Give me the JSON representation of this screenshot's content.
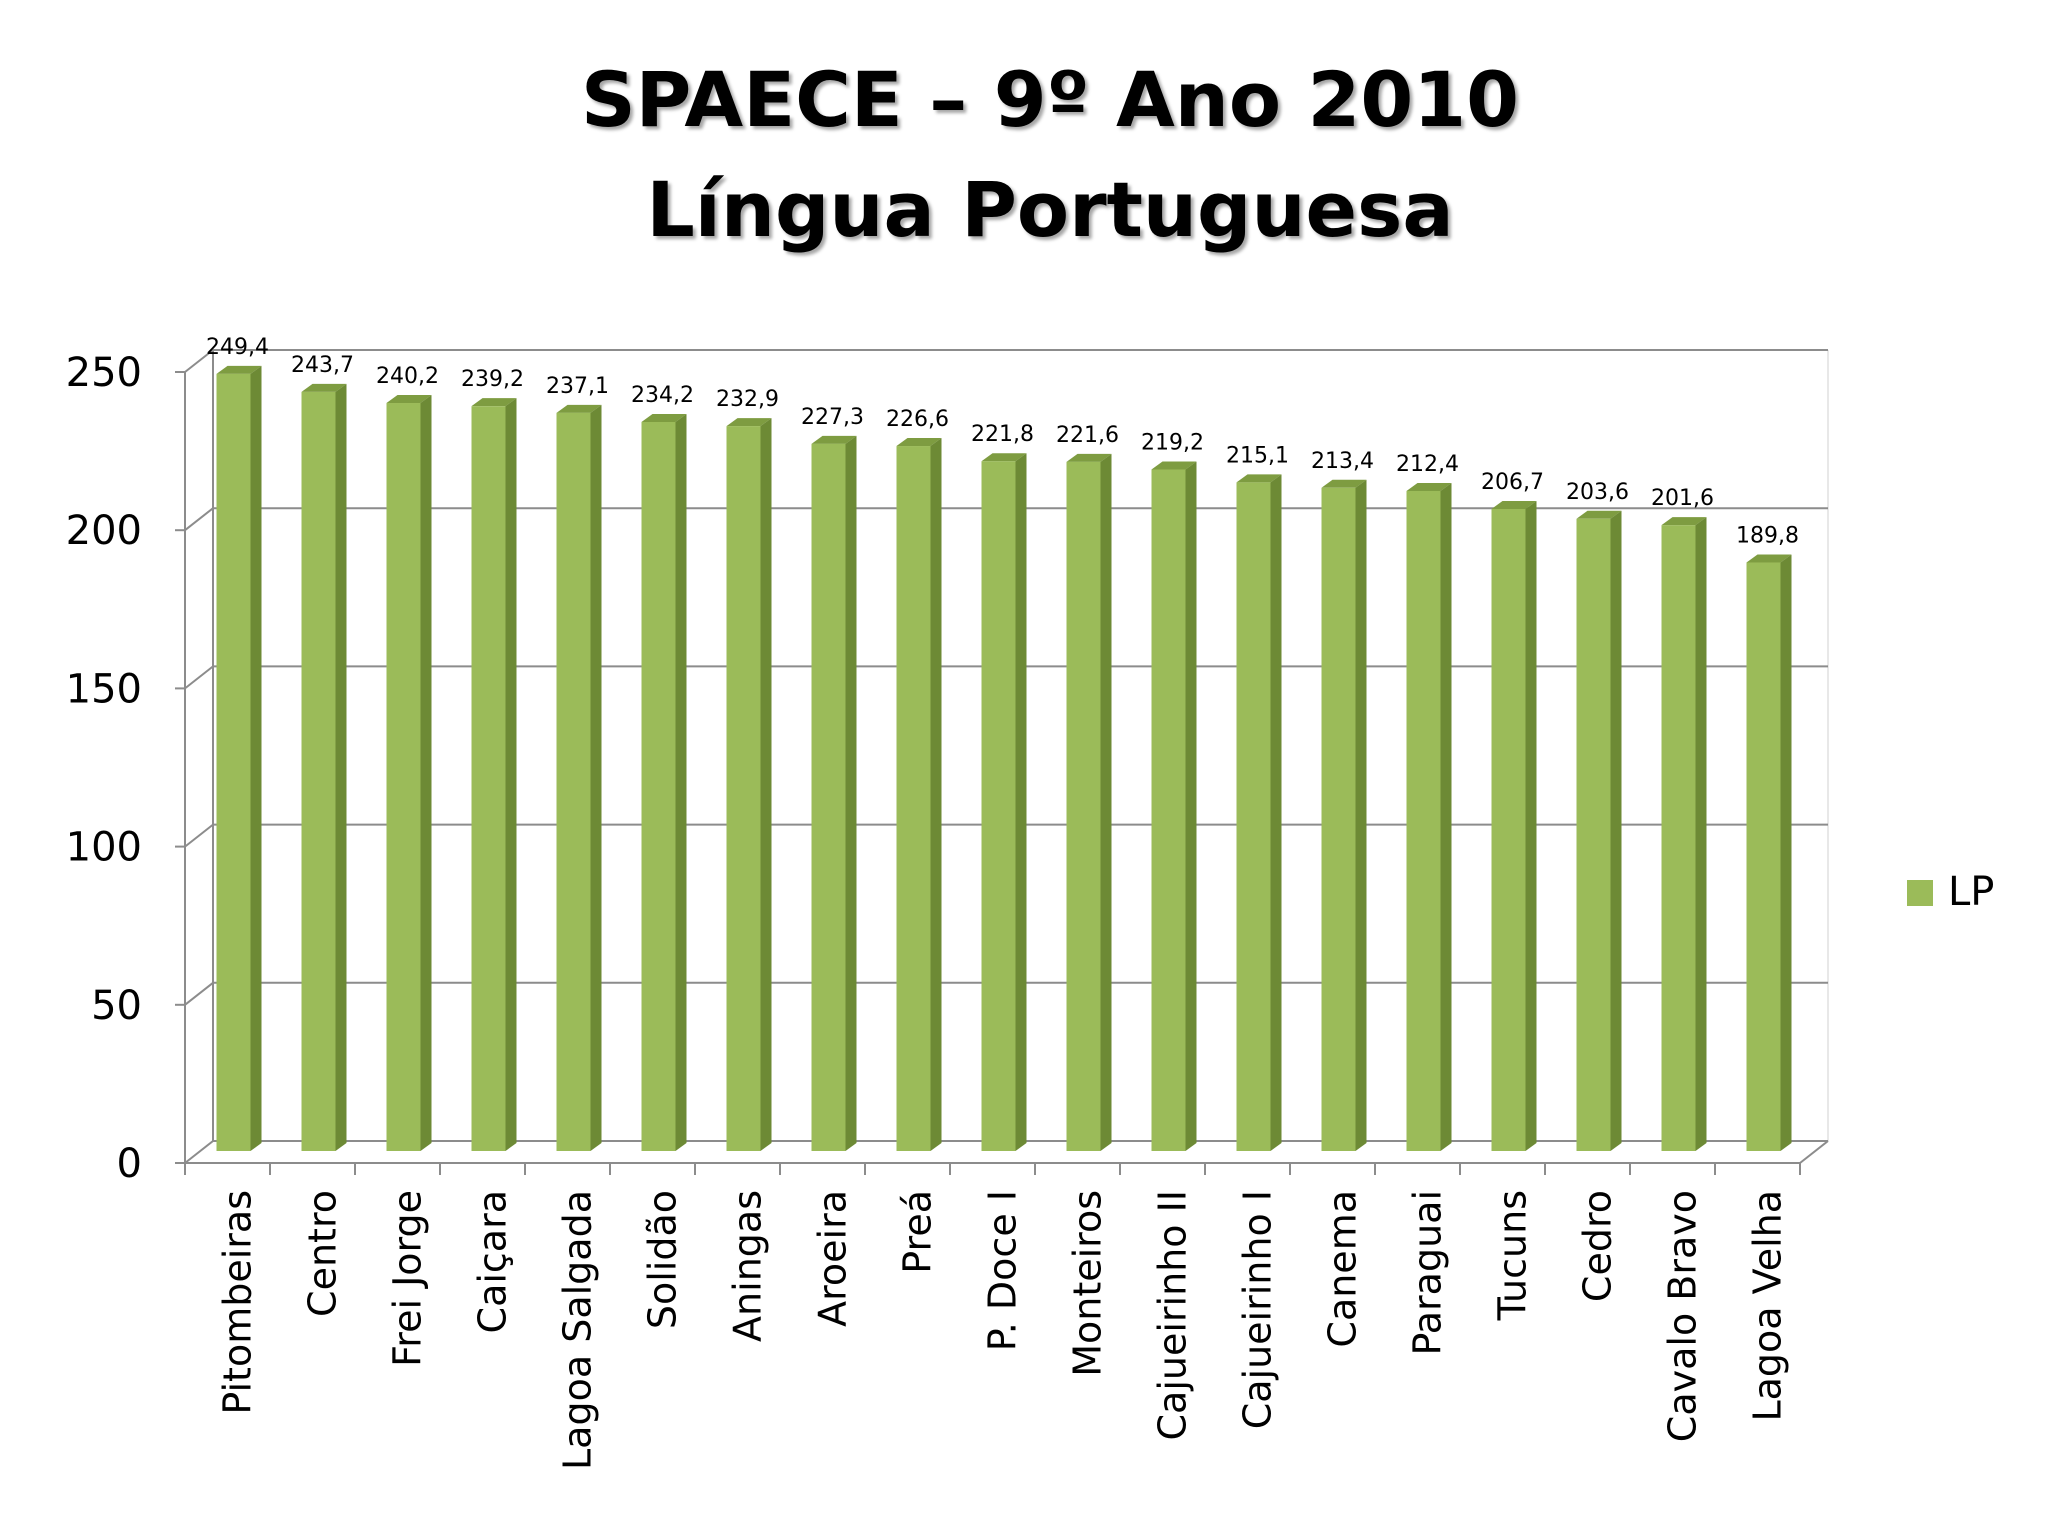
{
  "slide": {
    "title_line1": "SPAECE – 9º Ano 2010",
    "title_line2": "Língua Portuguesa"
  },
  "colors": {
    "bar_front": "#9BBB59",
    "bar_side": "#6D8A35",
    "bar_top": "#7E9C41",
    "grid": "#8C8C8C"
  },
  "chart_data": {
    "type": "bar",
    "title": "SPAECE – 9º Ano 2010 Língua Portuguesa",
    "xlabel": "",
    "ylabel": "",
    "ylim": [
      0,
      250
    ],
    "yticks": [
      0,
      50,
      100,
      150,
      200,
      250
    ],
    "grid": true,
    "legend": "right",
    "categories": [
      "Pitombeiras",
      "Centro",
      "Frei Jorge",
      "Caiçara",
      "Lagoa Salgada",
      "Solidão",
      "Aningas",
      "Aroeira",
      "Preá",
      "P. Doce I",
      "Monteiros",
      "Cajueirinho II",
      "Cajueirinho I",
      "Canema",
      "Paraguai",
      "Tucuns",
      "Cedro",
      "Cavalo Bravo",
      "Lagoa Velha"
    ],
    "series": [
      {
        "name": "LP",
        "values": [
          249.4,
          243.7,
          240.2,
          239.2,
          237.1,
          234.2,
          232.9,
          227.3,
          226.6,
          221.8,
          221.6,
          219.2,
          215.1,
          213.4,
          212.4,
          206.7,
          203.6,
          201.6,
          189.8
        ],
        "labels": [
          "249,4",
          "243,7",
          "240,2",
          "239,2",
          "237,1",
          "234,2",
          "232,9",
          "227,3",
          "226,6",
          "221,8",
          "221,6",
          "219,2",
          "215,1",
          "213,4",
          "212,4",
          "206,7",
          "203,6",
          "201,6",
          "189,8"
        ]
      }
    ]
  }
}
